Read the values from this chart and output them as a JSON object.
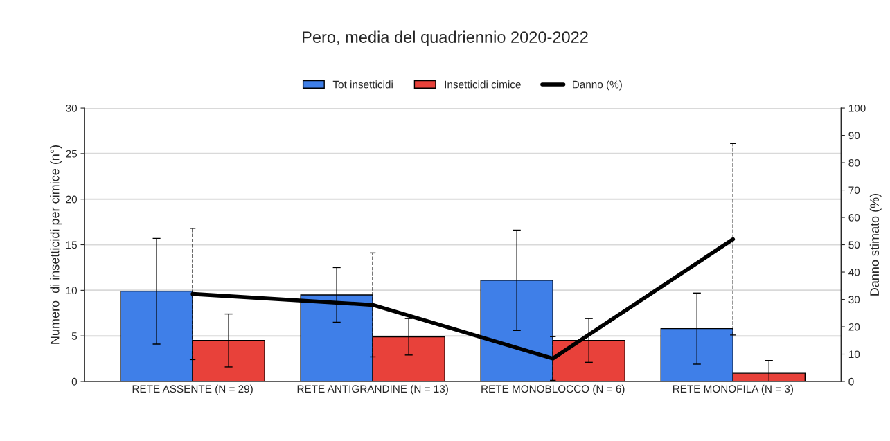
{
  "chart_data": {
    "type": "bar",
    "title": "Pero, media del quadriennio 2020-2022",
    "categories": [
      "RETE ASSENTE (N = 29)",
      "RETE ANTIGRANDINE (N = 13)",
      "RETE MONOBLOCCO (N = 6)",
      "RETE MONOFILA (N = 3)"
    ],
    "series": [
      {
        "name": "Tot insetticidi",
        "color": "#3f7fe8",
        "values": [
          9.9,
          9.5,
          11.1,
          5.8
        ],
        "errors": [
          5.8,
          3.0,
          5.5,
          3.9
        ]
      },
      {
        "name": "Insetticidi cimice",
        "color": "#e8413a",
        "values": [
          4.5,
          4.9,
          4.5,
          0.9
        ],
        "errors": [
          2.9,
          2.0,
          2.4,
          [
            0,
            2.3
          ]
        ]
      },
      {
        "name": "Danno (%)",
        "type": "line",
        "axis": "y2",
        "color": "#000000",
        "line_style": "solid",
        "values": [
          32,
          28,
          8.4,
          52
        ],
        "errors": [
          24,
          19,
          8,
          35
        ]
      }
    ],
    "ylabel": "Numero  di insetticidi per cimice (n°)",
    "y2label": "Danno stimato (%)",
    "ylim": [
      0,
      30
    ],
    "yticks": [
      0,
      5,
      10,
      15,
      20,
      25,
      30
    ],
    "y2lim": [
      0,
      100
    ],
    "y2ticks": [
      0,
      10,
      20,
      30,
      40,
      50,
      60,
      70,
      80,
      90,
      100
    ],
    "grid": "y",
    "legend": "top"
  }
}
